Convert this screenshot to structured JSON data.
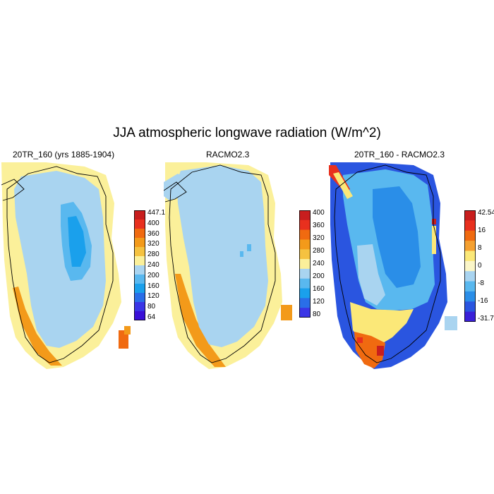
{
  "title": "JJA atmospheric longwave radiation (W/m^2)",
  "panels": [
    {
      "title": "20TR_160 (yrs 1885-1904)",
      "colorbar": {
        "labels": [
          "447.1",
          "400",
          "360",
          "320",
          "280",
          "240",
          "200",
          "160",
          "120",
          "80",
          "64"
        ],
        "colors": [
          "#c81e1e",
          "#e8301e",
          "#f06a10",
          "#f39a1a",
          "#f5c240",
          "#fbf09a",
          "#a9d4f0",
          "#59b8ef",
          "#1aa0ec",
          "#2a6ee8",
          "#3a35e6",
          "#3a10d8"
        ]
      }
    },
    {
      "title": "RACMO2.3",
      "colorbar": {
        "labels": [
          "400",
          "360",
          "320",
          "280",
          "240",
          "200",
          "160",
          "120",
          "80"
        ],
        "colors": [
          "#c81e1e",
          "#e8301e",
          "#f06a10",
          "#f39a1a",
          "#f5c240",
          "#fbf09a",
          "#a9d4f0",
          "#59b8ef",
          "#1aa0ec",
          "#2a6ee8",
          "#3a35e6"
        ]
      }
    },
    {
      "title": "20TR_160 - RACMO2.3",
      "colorbar": {
        "labels": [
          "42.54",
          "16",
          "8",
          "0",
          "-8",
          "-16",
          "-31.7"
        ],
        "colors": [
          "#c81e1e",
          "#e8301e",
          "#f06a10",
          "#f5a030",
          "#fbe878",
          "#fbf6c8",
          "#a9d4f0",
          "#59b8ef",
          "#2a8ee8",
          "#2a55e0",
          "#3a20d8"
        ]
      }
    }
  ]
}
